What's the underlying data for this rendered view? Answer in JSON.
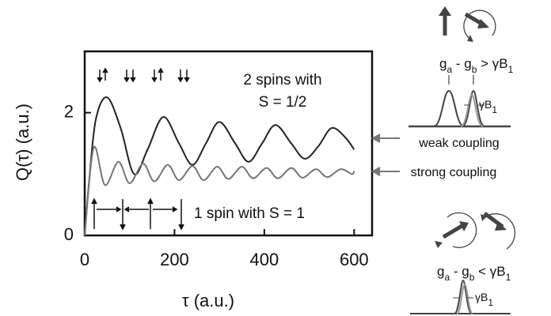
{
  "chart_data": {
    "type": "line",
    "xlabel": "τ (a.u.)",
    "ylabel": "Q(τ) (a.u.)",
    "xlim": [
      0,
      640
    ],
    "ylim": [
      0,
      3
    ],
    "xticks": [
      0,
      200,
      400,
      600
    ],
    "yticks": [
      0,
      2
    ],
    "series": [
      {
        "name": "weak coupling",
        "color": "#222222",
        "x": [
          0,
          10,
          25,
          50,
          80,
          110,
          140,
          175,
          210,
          240,
          270,
          300,
          335,
          365,
          395,
          425,
          460,
          490,
          520,
          550,
          580,
          600
        ],
        "values": [
          0,
          0.9,
          1.9,
          2.25,
          1.75,
          1.0,
          1.4,
          1.93,
          1.5,
          1.15,
          1.5,
          1.85,
          1.5,
          1.2,
          1.5,
          1.8,
          1.5,
          1.25,
          1.45,
          1.75,
          1.6,
          1.4
        ]
      },
      {
        "name": "strong coupling",
        "color": "#777777",
        "x": [
          0,
          20,
          45,
          75,
          100,
          130,
          155,
          185,
          210,
          240,
          265,
          295,
          320,
          350,
          375,
          405,
          430,
          460,
          485,
          515,
          540,
          570,
          595,
          600
        ],
        "values": [
          0,
          1.43,
          0.82,
          1.2,
          0.85,
          1.17,
          0.88,
          1.15,
          0.9,
          1.13,
          0.9,
          1.12,
          0.92,
          1.12,
          0.93,
          1.1,
          0.93,
          1.1,
          0.94,
          1.08,
          0.95,
          1.08,
          1.0,
          1.05
        ]
      }
    ],
    "annotations": [
      "2 spins with",
      "S = 1/2",
      "1 spin with S = 1"
    ],
    "diagram": {
      "upper": [
        "g",
        "a",
        " - g",
        "b",
        " > γB",
        "1"
      ],
      "upper_width": [
        "γB",
        "1"
      ],
      "lower": [
        "g",
        "a",
        " - g",
        "b",
        " < γB",
        "1"
      ],
      "lower_width": [
        "γB",
        "1"
      ]
    }
  }
}
